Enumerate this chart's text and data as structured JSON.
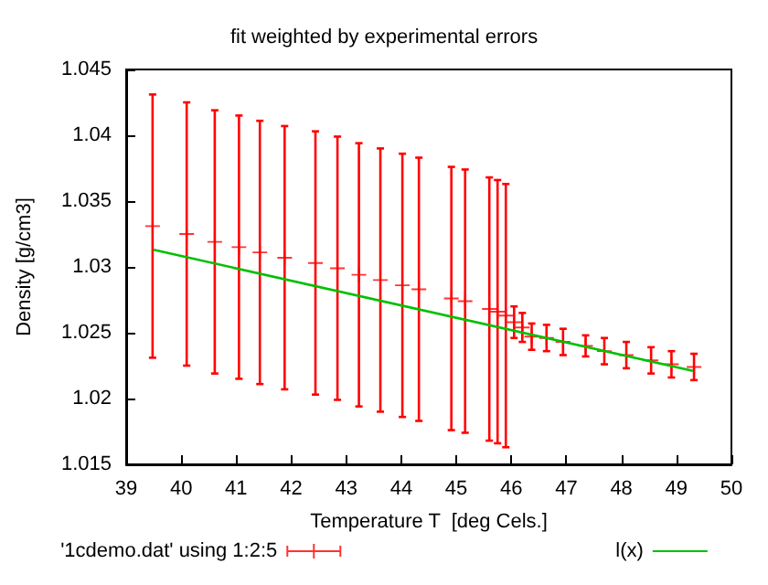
{
  "chart_data": {
    "type": "scatter",
    "title": "fit weighted by experimental errors",
    "xlabel": "Temperature T  [deg Cels.]",
    "ylabel": "Density [g/cm3]",
    "xlim": [
      39,
      50
    ],
    "xticks": [
      39,
      40,
      41,
      42,
      43,
      44,
      45,
      46,
      47,
      48,
      49,
      50
    ],
    "ylim": [
      1.015,
      1.045
    ],
    "yticks": [
      1.015,
      1.02,
      1.025,
      1.03,
      1.035,
      1.04,
      1.045
    ],
    "legend": "bottom",
    "grid": false,
    "series": [
      {
        "name": "'1cdemo.dat' using 1:2:5",
        "color": "#ff0000",
        "marker": "cross",
        "x": [
          39.48,
          40.1,
          40.61,
          41.05,
          41.43,
          41.88,
          42.44,
          42.84,
          43.23,
          43.62,
          44.02,
          44.32,
          44.91,
          45.16,
          45.6,
          45.75,
          45.9,
          46.05,
          46.2,
          46.37,
          46.64,
          46.94,
          47.35,
          47.69,
          48.09,
          48.54,
          48.91,
          49.32
        ],
        "values": [
          1.0331,
          1.0325,
          1.0319,
          1.0315,
          1.0311,
          1.0307,
          1.0303,
          1.0299,
          1.0294,
          1.029,
          1.0286,
          1.0283,
          1.0276,
          1.0274,
          1.0268,
          1.0266,
          1.0263,
          1.0258,
          1.0254,
          1.0247,
          1.0246,
          1.0243,
          1.024,
          1.0236,
          1.0233,
          1.0229,
          1.0226,
          1.0224
        ],
        "errors": [
          0.01,
          0.01,
          0.01,
          0.01,
          0.01,
          0.01,
          0.01,
          0.01,
          0.01,
          0.01,
          0.01,
          0.01,
          0.01,
          0.01,
          0.01,
          0.01,
          0.01,
          0.0012,
          0.0011,
          0.001,
          0.001,
          0.001,
          0.0008,
          0.001,
          0.001,
          0.001,
          0.001,
          0.001
        ]
      },
      {
        "name": "l(x)",
        "type": "line",
        "color": "#00c000",
        "marker": "none",
        "line_style": "solid",
        "x": [
          39.5,
          49.3
        ],
        "values": [
          1.0313,
          1.0221
        ]
      }
    ]
  }
}
